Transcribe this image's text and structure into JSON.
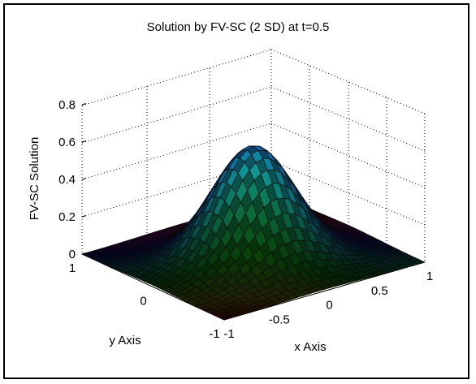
{
  "chart_data": {
    "type": "surface",
    "title": "Solution by FV-SC (2 SD) at t=0.5",
    "xlabel": "x Axis",
    "ylabel": "y Axis",
    "zlabel": "FV-SC Solution",
    "xlim": [
      -1,
      1
    ],
    "ylim": [
      -1,
      1
    ],
    "zlim": [
      0,
      0.8
    ],
    "x_ticks": [
      "-1",
      "-0.5",
      "0",
      "0.5",
      "1"
    ],
    "y_ticks": [
      "-1",
      "0",
      "1"
    ],
    "z_ticks": [
      "0",
      "0.2",
      "0.4",
      "0.6",
      "0.8"
    ],
    "peak": {
      "x": 0,
      "y": 0,
      "z": 0.6
    },
    "grid": true,
    "colormap": "hsv"
  }
}
